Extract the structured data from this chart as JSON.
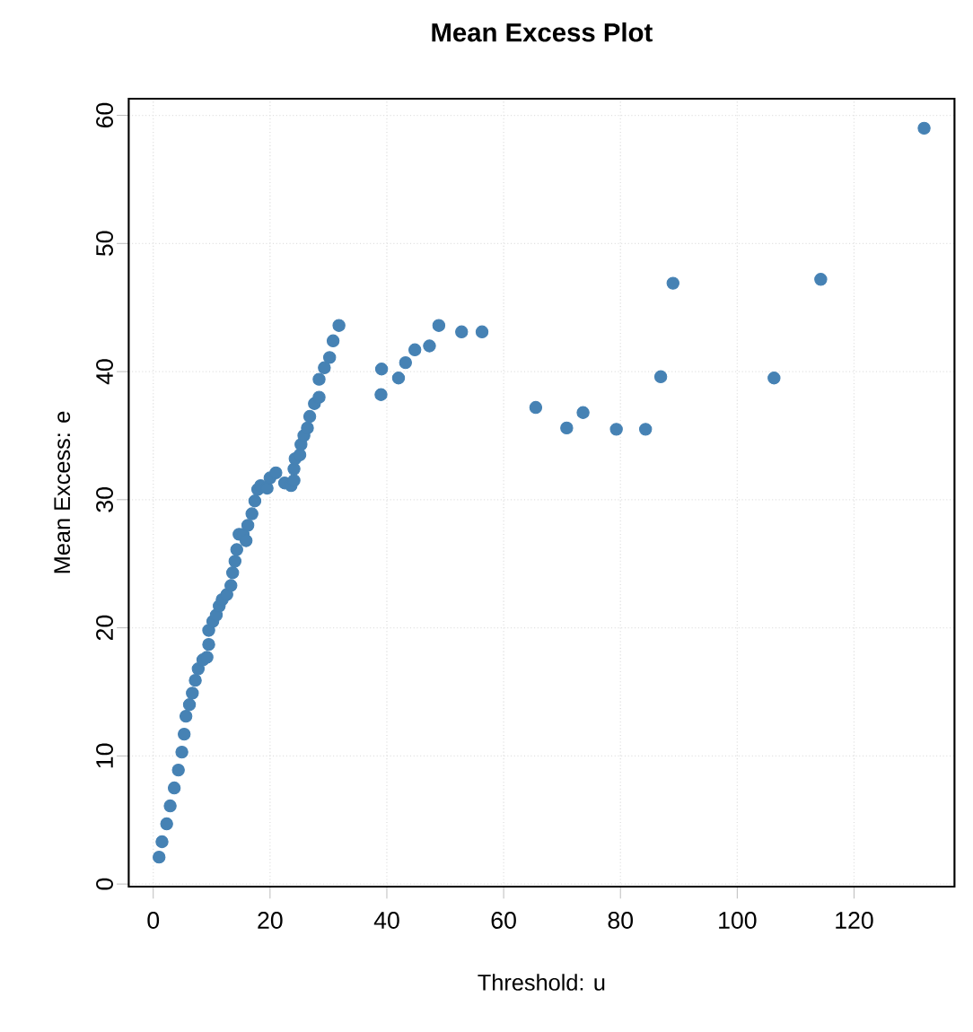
{
  "chart_data": {
    "type": "scatter",
    "title": "Mean Excess Plot",
    "xlabel": "Threshold: u",
    "ylabel": "Mean Excess: e",
    "xlim": [
      -4.2,
      137.2
    ],
    "ylim": [
      -0.2,
      61.3
    ],
    "xticks": [
      0,
      20,
      40,
      60,
      80,
      100,
      120
    ],
    "yticks": [
      0,
      10,
      20,
      30,
      40,
      50,
      60
    ],
    "grid": true,
    "marker": "circle",
    "series": [
      {
        "color": "#4682b4",
        "x": [
          1.0,
          1.5,
          2.3,
          2.9,
          3.6,
          4.3,
          4.9,
          5.3,
          5.6,
          6.2,
          6.7,
          7.2,
          7.7,
          8.5,
          9.2,
          9.5,
          9.5,
          10.2,
          10.8,
          11.3,
          11.8,
          12.6,
          13.3,
          13.6,
          14.0,
          14.3,
          14.7,
          15.4,
          15.9,
          16.2,
          16.9,
          17.4,
          17.9,
          18.4,
          19.5,
          20.0,
          21.0,
          22.5,
          23.6,
          24.1,
          24.1,
          24.3,
          25.1,
          25.3,
          25.8,
          26.4,
          26.8,
          27.6,
          28.4,
          28.4,
          29.3,
          30.2,
          30.8,
          31.8,
          39.0,
          39.1,
          42.0,
          43.2,
          44.8,
          47.3,
          48.9,
          52.8,
          56.3,
          65.5,
          70.8,
          73.6,
          79.3,
          84.3,
          86.9,
          89.0,
          106.3,
          114.3,
          132.0
        ],
        "values": [
          2.1,
          3.3,
          4.7,
          6.1,
          7.5,
          8.9,
          10.3,
          11.7,
          13.1,
          14.0,
          14.9,
          15.9,
          16.8,
          17.5,
          17.7,
          18.7,
          19.8,
          20.5,
          21.0,
          21.7,
          22.2,
          22.6,
          23.3,
          24.3,
          25.2,
          26.1,
          27.3,
          27.3,
          26.8,
          28.0,
          28.9,
          29.9,
          30.8,
          31.1,
          30.9,
          31.7,
          32.1,
          31.3,
          31.1,
          31.5,
          32.4,
          33.2,
          33.5,
          34.3,
          35.0,
          35.6,
          36.5,
          37.5,
          38.0,
          39.4,
          40.3,
          41.1,
          42.4,
          43.6,
          38.2,
          40.2,
          39.5,
          40.7,
          41.7,
          42.0,
          43.6,
          43.1,
          43.1,
          37.2,
          35.6,
          36.8,
          35.5,
          35.5,
          39.6,
          46.9,
          39.5,
          47.2,
          59.0
        ]
      }
    ]
  }
}
